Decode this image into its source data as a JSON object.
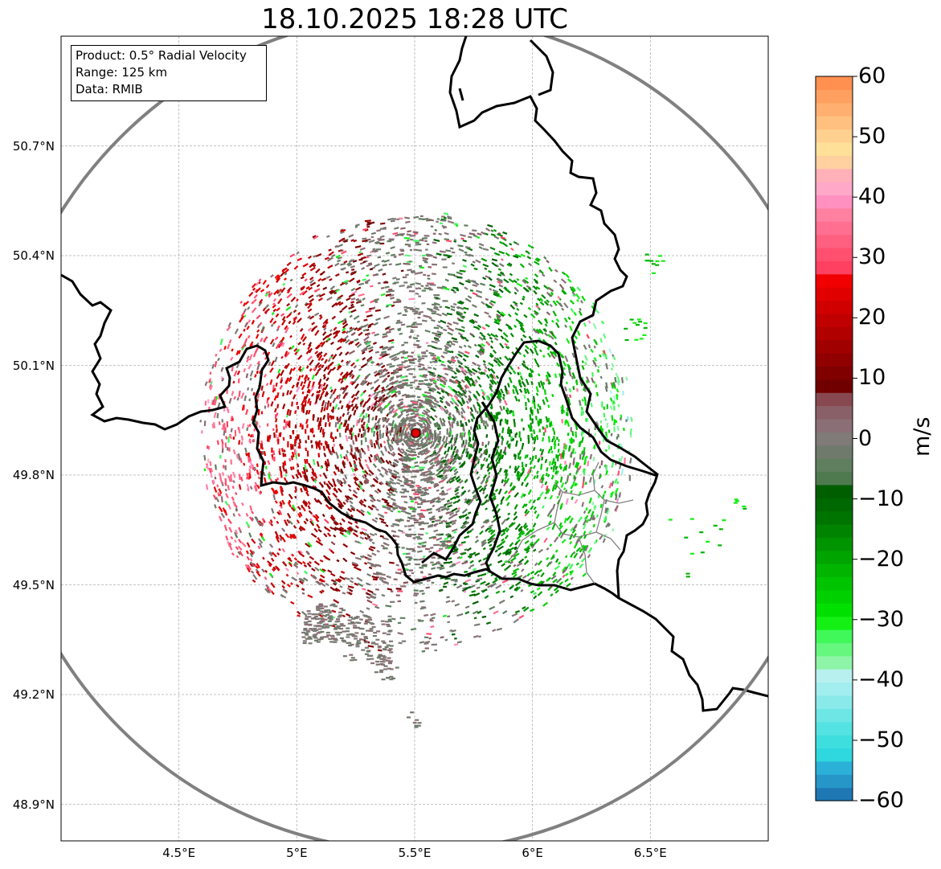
{
  "title": "18.10.2025 18:28 UTC",
  "info_box": {
    "product": "Product: 0.5° Radial Velocity",
    "range": "Range: 125 km",
    "data": "Data: RMIB"
  },
  "map": {
    "lon_range": [
      4.0,
      7.0
    ],
    "lat_range": [
      48.8,
      51.0
    ],
    "lat_ticks": [
      {
        "value": 50.7,
        "label": "50.7°N"
      },
      {
        "value": 50.4,
        "label": "50.4°N"
      },
      {
        "value": 50.1,
        "label": "50.1°N"
      },
      {
        "value": 49.8,
        "label": "49.8°N"
      },
      {
        "value": 49.5,
        "label": "49.5°N"
      },
      {
        "value": 49.2,
        "label": "49.2°N"
      },
      {
        "value": 48.9,
        "label": "48.9°N"
      }
    ],
    "lon_ticks": [
      {
        "value": 4.5,
        "label": "4.5°E"
      },
      {
        "value": 5.0,
        "label": "5°E"
      },
      {
        "value": 5.5,
        "label": "5.5°E"
      },
      {
        "value": 6.0,
        "label": "6°E"
      },
      {
        "value": 6.5,
        "label": "6.5°E"
      }
    ],
    "radar_site": {
      "lon": 5.505,
      "lat": 49.915
    },
    "range_ring_color": "#808080",
    "border_color": "#000000",
    "site_marker_color": "#e00000"
  },
  "colorbar": {
    "label": "m/s",
    "vmin": -60,
    "vmax": 60,
    "ticks": [
      {
        "value": 60,
        "label": "60"
      },
      {
        "value": 50,
        "label": "50"
      },
      {
        "value": 40,
        "label": "40"
      },
      {
        "value": 30,
        "label": "30"
      },
      {
        "value": 20,
        "label": "20"
      },
      {
        "value": 10,
        "label": "10"
      },
      {
        "value": 0,
        "label": "0"
      },
      {
        "value": -10,
        "label": "−10"
      },
      {
        "value": -20,
        "label": "−20"
      },
      {
        "value": -30,
        "label": "−30"
      },
      {
        "value": -40,
        "label": "−40"
      },
      {
        "value": -50,
        "label": "−50"
      },
      {
        "value": -60,
        "label": "−60"
      }
    ],
    "colors": [
      "#1f77b4",
      "#2696c8",
      "#2bb0d8",
      "#2ed8de",
      "#3fdede",
      "#55e2e2",
      "#6ee6e6",
      "#8aeaea",
      "#a2eeee",
      "#b8f0f0",
      "#8ef5a8",
      "#66f77f",
      "#40f85a",
      "#14f014",
      "#00e000",
      "#00d000",
      "#00c400",
      "#00b400",
      "#00a400",
      "#009400",
      "#008400",
      "#007400",
      "#006800",
      "#005e00",
      "#4f7a4f",
      "#5f7f5f",
      "#707a6c",
      "#807a78",
      "#8a7076",
      "#8a6068",
      "#884850",
      "#700000",
      "#800000",
      "#900000",
      "#a00000",
      "#b00000",
      "#c00000",
      "#d00000",
      "#e00000",
      "#f00000",
      "#ff4060",
      "#ff5070",
      "#ff6080",
      "#ff7090",
      "#ff80a0",
      "#ff90c0",
      "#ffa8c8",
      "#ffb0b8",
      "#ffd0a0",
      "#ffe098",
      "#ffd090",
      "#ffc080",
      "#ffb070",
      "#ffa060",
      "#ff9050"
    ]
  }
}
